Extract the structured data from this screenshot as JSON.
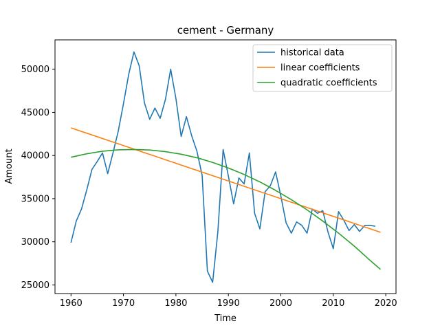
{
  "chart_data": {
    "type": "line",
    "title": "cement - Germany",
    "xlabel": "Time",
    "ylabel": "Amount",
    "xlim": [
      1956.95,
      2021.95
    ],
    "ylim": [
      24000,
      53400
    ],
    "x_ticks": [
      1960,
      1970,
      1980,
      1990,
      2000,
      2010,
      2020
    ],
    "y_ticks": [
      25000,
      30000,
      35000,
      40000,
      45000,
      50000
    ],
    "legend_position": "top-right",
    "grid": false,
    "series": [
      {
        "name": "historical data",
        "color": "#1f77b4",
        "x": [
          1960,
          1961,
          1962,
          1963,
          1964,
          1965,
          1966,
          1967,
          1968,
          1969,
          1970,
          1971,
          1972,
          1973,
          1974,
          1975,
          1976,
          1977,
          1978,
          1979,
          1980,
          1981,
          1982,
          1983,
          1984,
          1985,
          1986,
          1987,
          1988,
          1989,
          1990,
          1991,
          1992,
          1993,
          1994,
          1995,
          1996,
          1997,
          1998,
          1999,
          2000,
          2001,
          2002,
          2003,
          2004,
          2005,
          2006,
          2007,
          2008,
          2009,
          2010,
          2011,
          2012,
          2013,
          2014,
          2015,
          2016,
          2017,
          2018
        ],
        "y": [
          29900,
          32400,
          33800,
          36000,
          38400,
          39300,
          40300,
          37900,
          40300,
          42800,
          46000,
          49400,
          52000,
          50400,
          46100,
          44200,
          45500,
          44300,
          46500,
          50000,
          46600,
          42200,
          44500,
          42300,
          40500,
          37700,
          26600,
          25300,
          31200,
          40700,
          37600,
          34400,
          37400,
          36700,
          40300,
          33300,
          31500,
          35800,
          36500,
          38100,
          35300,
          32200,
          31000,
          32300,
          31900,
          31000,
          33800,
          33300,
          33600,
          31100,
          29200,
          33500,
          32500,
          31300,
          32000,
          31200,
          31900,
          31900,
          31800
        ]
      },
      {
        "name": "linear coefficients",
        "color": "#ff7f0e",
        "x": [
          1960,
          2019
        ],
        "y": [
          43200,
          31100
        ]
      },
      {
        "name": "quadratic coefficients",
        "color": "#2ca02c",
        "x": [
          1960,
          1963,
          1966,
          1969,
          1972,
          1975,
          1978,
          1981,
          1984,
          1987,
          1990,
          1993,
          1996,
          1999,
          2002,
          2005,
          2008,
          2011,
          2014,
          2017,
          2019
        ],
        "y": [
          39800,
          40200,
          40500,
          40660,
          40700,
          40640,
          40450,
          40150,
          39740,
          39200,
          38550,
          37800,
          36940,
          35960,
          34880,
          33700,
          32400,
          31000,
          29500,
          27850,
          26800
        ]
      }
    ]
  }
}
